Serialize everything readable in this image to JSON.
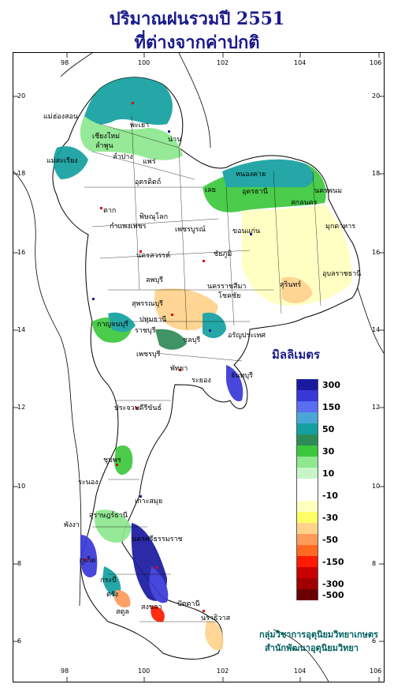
{
  "title_line1": "ปริมาณฝนรวมปี 2551",
  "title_line2": "ที่ต่างจากค่าปกติ",
  "axis": {
    "x_ticks": [
      "98",
      "100",
      "102",
      "104",
      "106"
    ],
    "y_ticks": [
      "20",
      "18",
      "16",
      "14",
      "12",
      "10",
      "8",
      "6"
    ]
  },
  "legend": {
    "unit": "มิลลิเมตร",
    "classes": [
      {
        "label": "300",
        "color": "#1a1aa0"
      },
      {
        "label": "",
        "color": "#3838d8"
      },
      {
        "label": "150",
        "color": "#5a6ef0"
      },
      {
        "label": "",
        "color": "#4aa6d6"
      },
      {
        "label": "50",
        "color": "#14a0a0"
      },
      {
        "label": "",
        "color": "#2e8b57"
      },
      {
        "label": "30",
        "color": "#3cc83c"
      },
      {
        "label": "",
        "color": "#8ee88e"
      },
      {
        "label": "10",
        "color": "#c8f5c8"
      },
      {
        "label": "",
        "color": "#ffffff"
      },
      {
        "label": "-10",
        "color": "#ffffff"
      },
      {
        "label": "",
        "color": "#ffffc0"
      },
      {
        "label": "-30",
        "color": "#ffff66"
      },
      {
        "label": "",
        "color": "#ffd28c"
      },
      {
        "label": "-50",
        "color": "#ff9a5a"
      },
      {
        "label": "",
        "color": "#ff6a20"
      },
      {
        "label": "-150",
        "color": "#ff1a00"
      },
      {
        "label": "",
        "color": "#c80000"
      },
      {
        "label": "-300",
        "color": "#a00000"
      },
      {
        "label": "-500",
        "color": "#6a0000"
      }
    ]
  },
  "cities": [
    "แม่ฮ่องสอน",
    "พะเยา",
    "น่าน",
    "เชียงใหม่",
    "ลำพูน",
    "ลำปาง",
    "แพร่",
    "แม่สะเรียง",
    "อุตรดิตถ์",
    "หนองคาย",
    "ตาก",
    "เลย",
    "อุดรธานี",
    "สกลนคร",
    "นครพนม",
    "พิษณุโลก",
    "กำแพงเพชร",
    "เพชรบูรณ์",
    "มุกดาหาร",
    "นครสวรรค์",
    "ขอนแก่น",
    "ชัยภูมิ",
    "อุบลราชธานี",
    "นครราชสีมา",
    "สุรินทร์",
    "ลพบุรี",
    "สุพรรณบุรี",
    "กาญจนบุรี",
    "ปทุมธานี",
    "โชคชัย",
    "อรัญประเทศ",
    "ราชบุรี",
    "ชลบุรี",
    "เพชรบุรี",
    "พัทยา",
    "ระยอง",
    "จันทบุรี",
    "ประจวบคีรีขันธ์",
    "ชุมพร",
    "ระนอง",
    "สุราษฎร์ธานี",
    "เกาะสมุย",
    "พังงา",
    "ภูเก็ต",
    "นครศรีธรรมราช",
    "กระบี่",
    "ตรัง",
    "สงขลา",
    "ปัตตานี",
    "นราธิวาส",
    "สตูล"
  ],
  "credit_line1": "กลุ่มวิชาการอุตุนิยมวิทยาเกษตร",
  "credit_line2": "สำนักพัฒนาอุตุนิยมวิทยา"
}
